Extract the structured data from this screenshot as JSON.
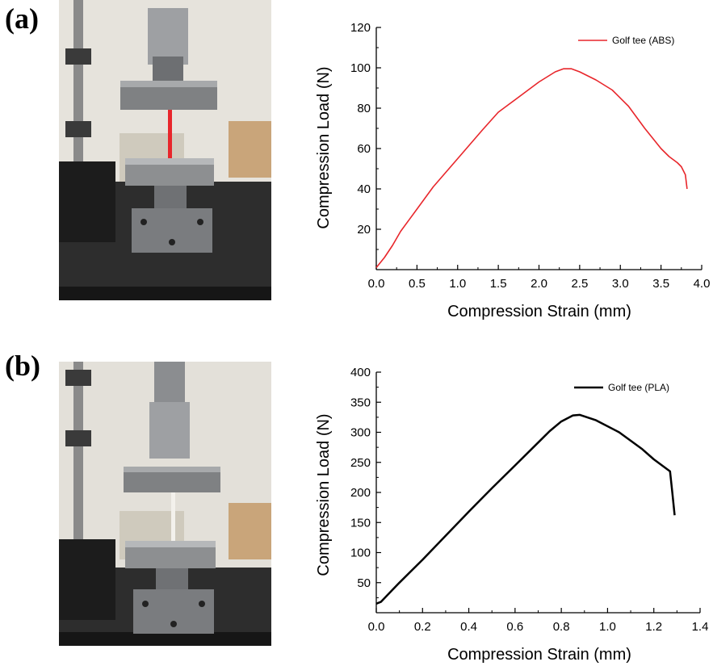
{
  "panels": [
    {
      "label": "(a)"
    },
    {
      "label": "(b)"
    }
  ],
  "chart_data": [
    {
      "type": "line",
      "xlabel": "Compression Strain (mm)",
      "ylabel": "Compression Load (N)",
      "xlim": [
        0,
        4.0
      ],
      "ylim": [
        0,
        120
      ],
      "xticks": [
        "0.0",
        "0.5",
        "1.0",
        "1.5",
        "2.0",
        "2.5",
        "3.0",
        "3.5",
        "4.0"
      ],
      "yticks": [
        "20",
        "40",
        "60",
        "80",
        "100",
        "120"
      ],
      "legend_position": "top-right",
      "series": [
        {
          "name": "Golf tee (ABS)",
          "color": "#e8262b",
          "x": [
            0.0,
            0.1,
            0.2,
            0.3,
            0.5,
            0.7,
            1.0,
            1.3,
            1.5,
            1.6,
            1.8,
            2.0,
            2.2,
            2.3,
            2.4,
            2.5,
            2.7,
            2.9,
            3.1,
            3.3,
            3.5,
            3.6,
            3.7,
            3.75,
            3.8,
            3.82
          ],
          "y": [
            1,
            6,
            12,
            19,
            30,
            41,
            55,
            69,
            78,
            81,
            87,
            93,
            98,
            99.5,
            99.5,
            98,
            94,
            89,
            81,
            70,
            60,
            56,
            53,
            51,
            47,
            40
          ]
        }
      ]
    },
    {
      "type": "line",
      "xlabel": "Compression Strain (mm)",
      "ylabel": "Compression Load (N)",
      "xlim": [
        0,
        1.4
      ],
      "ylim": [
        0,
        400
      ],
      "xticks": [
        "0.0",
        "0.2",
        "0.4",
        "0.6",
        "0.8",
        "1.0",
        "1.2",
        "1.4"
      ],
      "yticks": [
        "50",
        "100",
        "150",
        "200",
        "250",
        "300",
        "350",
        "400"
      ],
      "legend_position": "top-right",
      "series": [
        {
          "name": "Golf tee (PLA)",
          "color": "#000000",
          "x": [
            0.0,
            0.02,
            0.05,
            0.1,
            0.2,
            0.3,
            0.4,
            0.5,
            0.6,
            0.7,
            0.75,
            0.8,
            0.85,
            0.88,
            0.95,
            1.05,
            1.15,
            1.2,
            1.27,
            1.28,
            1.29
          ],
          "y": [
            15,
            18,
            30,
            50,
            88,
            128,
            168,
            207,
            245,
            283,
            302,
            318,
            328,
            329,
            320,
            300,
            272,
            255,
            235,
            200,
            162
          ]
        }
      ]
    }
  ]
}
